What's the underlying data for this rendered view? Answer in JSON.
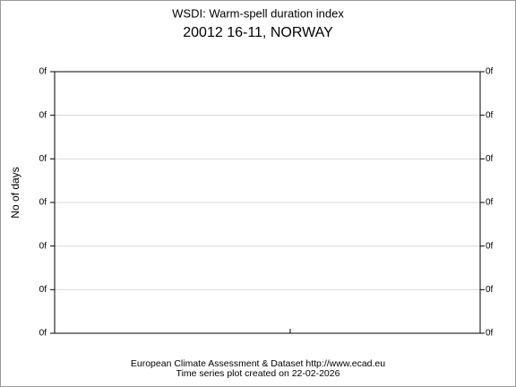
{
  "title": "WSDI: Warm-spell duration index",
  "subtitle": "20012 16-11, NORWAY",
  "y_axis_label": "No of days",
  "left_tick_labels": [
    "0f",
    "0f",
    "0f",
    "0f",
    "0f",
    "0f",
    "0f"
  ],
  "right_tick_labels": [
    "0f",
    "0f",
    "0f",
    "0f",
    "0f",
    "0f",
    "0f"
  ],
  "footer": [
    "European Climate Assessment & Dataset  http://www.ecad.eu",
    "Time series plot created on 22-02-2026"
  ]
}
